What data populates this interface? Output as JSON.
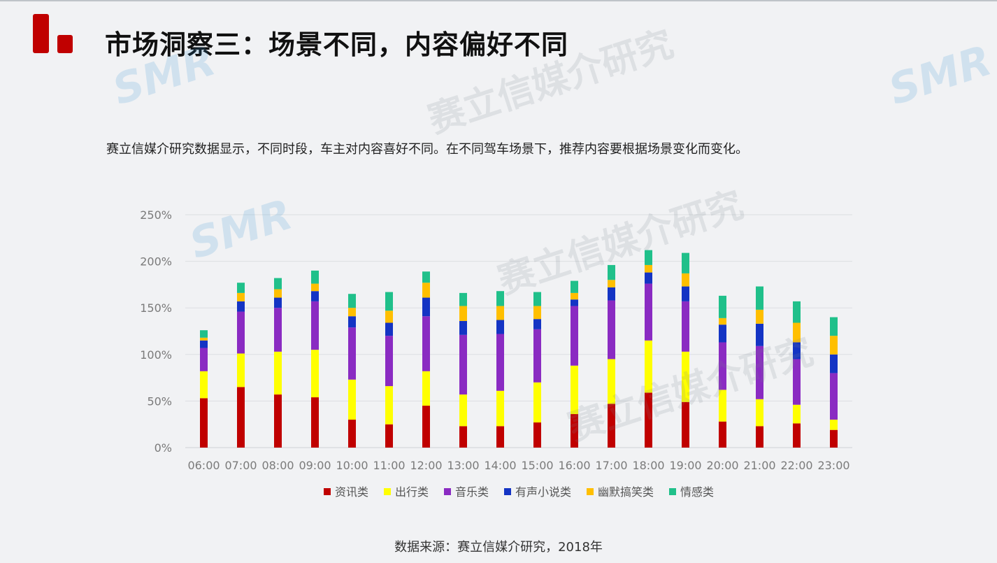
{
  "header": {
    "title": "市场洞察三：场景不同，内容偏好不同",
    "subtitle": "赛立信媒介研究数据显示，不同时段，车主对内容喜好不同。在不同驾车场景下，推荐内容要根据场景变化而变化。"
  },
  "footer": {
    "source": "数据来源：赛立信媒介研究，2018年"
  },
  "chart_data": {
    "type": "bar",
    "stacked": true,
    "title": "",
    "xlabel": "",
    "ylabel": "",
    "ylim": [
      0,
      250
    ],
    "y_unit": "%",
    "yticks": [
      0,
      50,
      100,
      150,
      200,
      250
    ],
    "ytick_labels": [
      "0%",
      "50%",
      "100%",
      "150%",
      "200%",
      "250%"
    ],
    "grid": true,
    "legend_position": "bottom",
    "categories": [
      "06:00",
      "07:00",
      "08:00",
      "09:00",
      "10:00",
      "11:00",
      "12:00",
      "13:00",
      "14:00",
      "15:00",
      "16:00",
      "17:00",
      "18:00",
      "19:00",
      "20:00",
      "21:00",
      "22:00",
      "23:00"
    ],
    "series": [
      {
        "name": "资讯类",
        "color": "#c00000",
        "values": [
          53,
          65,
          57,
          54,
          30,
          25,
          45,
          23,
          23,
          27,
          36,
          47,
          59,
          49,
          28,
          23,
          26,
          19
        ]
      },
      {
        "name": "出行类",
        "color": "#ffff00",
        "values": [
          29,
          36,
          46,
          51,
          43,
          41,
          37,
          34,
          38,
          43,
          52,
          48,
          56,
          54,
          34,
          29,
          20,
          11
        ]
      },
      {
        "name": "音乐类",
        "color": "#8a2bc2",
        "values": [
          25,
          45,
          47,
          52,
          56,
          54,
          59,
          64,
          61,
          57,
          64,
          63,
          61,
          54,
          51,
          57,
          49,
          50
        ]
      },
      {
        "name": "有声小说类",
        "color": "#1434c4",
        "values": [
          8,
          11,
          11,
          11,
          12,
          14,
          20,
          15,
          15,
          11,
          7,
          14,
          12,
          16,
          19,
          24,
          18,
          20
        ]
      },
      {
        "name": "幽默搞笑类",
        "color": "#ffbf00",
        "values": [
          3,
          9,
          9,
          8,
          9,
          13,
          16,
          16,
          15,
          14,
          7,
          8,
          8,
          14,
          7,
          15,
          21,
          20
        ]
      },
      {
        "name": "情感类",
        "color": "#20c08a",
        "values": [
          8,
          11,
          12,
          14,
          15,
          20,
          12,
          14,
          16,
          15,
          13,
          16,
          16,
          22,
          24,
          25,
          23,
          20
        ]
      }
    ]
  },
  "watermark": {
    "brand": "SMR",
    "text": "赛立信媒介研究"
  }
}
